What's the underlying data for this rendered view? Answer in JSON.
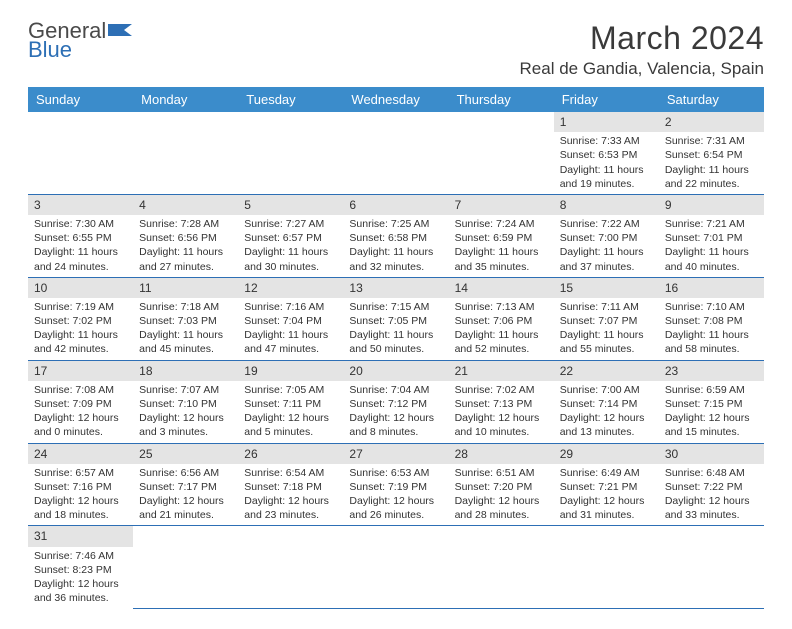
{
  "logo": {
    "word1": "General",
    "word2": "Blue"
  },
  "title": "March 2024",
  "location": "Real de Gandia, Valencia, Spain",
  "weekdays": [
    "Sunday",
    "Monday",
    "Tuesday",
    "Wednesday",
    "Thursday",
    "Friday",
    "Saturday"
  ],
  "colors": {
    "header_bg": "#3b8ccb",
    "header_fg": "#ffffff",
    "rule": "#2d6fb5",
    "daynum_bg": "#e4e4e4",
    "logo_blue": "#2d6fb5"
  },
  "grid": [
    [
      null,
      null,
      null,
      null,
      null,
      {
        "n": "1",
        "sr": "7:33 AM",
        "ss": "6:53 PM",
        "dl": "11 hours and 19 minutes."
      },
      {
        "n": "2",
        "sr": "7:31 AM",
        "ss": "6:54 PM",
        "dl": "11 hours and 22 minutes."
      }
    ],
    [
      {
        "n": "3",
        "sr": "7:30 AM",
        "ss": "6:55 PM",
        "dl": "11 hours and 24 minutes."
      },
      {
        "n": "4",
        "sr": "7:28 AM",
        "ss": "6:56 PM",
        "dl": "11 hours and 27 minutes."
      },
      {
        "n": "5",
        "sr": "7:27 AM",
        "ss": "6:57 PM",
        "dl": "11 hours and 30 minutes."
      },
      {
        "n": "6",
        "sr": "7:25 AM",
        "ss": "6:58 PM",
        "dl": "11 hours and 32 minutes."
      },
      {
        "n": "7",
        "sr": "7:24 AM",
        "ss": "6:59 PM",
        "dl": "11 hours and 35 minutes."
      },
      {
        "n": "8",
        "sr": "7:22 AM",
        "ss": "7:00 PM",
        "dl": "11 hours and 37 minutes."
      },
      {
        "n": "9",
        "sr": "7:21 AM",
        "ss": "7:01 PM",
        "dl": "11 hours and 40 minutes."
      }
    ],
    [
      {
        "n": "10",
        "sr": "7:19 AM",
        "ss": "7:02 PM",
        "dl": "11 hours and 42 minutes."
      },
      {
        "n": "11",
        "sr": "7:18 AM",
        "ss": "7:03 PM",
        "dl": "11 hours and 45 minutes."
      },
      {
        "n": "12",
        "sr": "7:16 AM",
        "ss": "7:04 PM",
        "dl": "11 hours and 47 minutes."
      },
      {
        "n": "13",
        "sr": "7:15 AM",
        "ss": "7:05 PM",
        "dl": "11 hours and 50 minutes."
      },
      {
        "n": "14",
        "sr": "7:13 AM",
        "ss": "7:06 PM",
        "dl": "11 hours and 52 minutes."
      },
      {
        "n": "15",
        "sr": "7:11 AM",
        "ss": "7:07 PM",
        "dl": "11 hours and 55 minutes."
      },
      {
        "n": "16",
        "sr": "7:10 AM",
        "ss": "7:08 PM",
        "dl": "11 hours and 58 minutes."
      }
    ],
    [
      {
        "n": "17",
        "sr": "7:08 AM",
        "ss": "7:09 PM",
        "dl": "12 hours and 0 minutes."
      },
      {
        "n": "18",
        "sr": "7:07 AM",
        "ss": "7:10 PM",
        "dl": "12 hours and 3 minutes."
      },
      {
        "n": "19",
        "sr": "7:05 AM",
        "ss": "7:11 PM",
        "dl": "12 hours and 5 minutes."
      },
      {
        "n": "20",
        "sr": "7:04 AM",
        "ss": "7:12 PM",
        "dl": "12 hours and 8 minutes."
      },
      {
        "n": "21",
        "sr": "7:02 AM",
        "ss": "7:13 PM",
        "dl": "12 hours and 10 minutes."
      },
      {
        "n": "22",
        "sr": "7:00 AM",
        "ss": "7:14 PM",
        "dl": "12 hours and 13 minutes."
      },
      {
        "n": "23",
        "sr": "6:59 AM",
        "ss": "7:15 PM",
        "dl": "12 hours and 15 minutes."
      }
    ],
    [
      {
        "n": "24",
        "sr": "6:57 AM",
        "ss": "7:16 PM",
        "dl": "12 hours and 18 minutes."
      },
      {
        "n": "25",
        "sr": "6:56 AM",
        "ss": "7:17 PM",
        "dl": "12 hours and 21 minutes."
      },
      {
        "n": "26",
        "sr": "6:54 AM",
        "ss": "7:18 PM",
        "dl": "12 hours and 23 minutes."
      },
      {
        "n": "27",
        "sr": "6:53 AM",
        "ss": "7:19 PM",
        "dl": "12 hours and 26 minutes."
      },
      {
        "n": "28",
        "sr": "6:51 AM",
        "ss": "7:20 PM",
        "dl": "12 hours and 28 minutes."
      },
      {
        "n": "29",
        "sr": "6:49 AM",
        "ss": "7:21 PM",
        "dl": "12 hours and 31 minutes."
      },
      {
        "n": "30",
        "sr": "6:48 AM",
        "ss": "7:22 PM",
        "dl": "12 hours and 33 minutes."
      }
    ],
    [
      {
        "n": "31",
        "sr": "7:46 AM",
        "ss": "8:23 PM",
        "dl": "12 hours and 36 minutes."
      },
      null,
      null,
      null,
      null,
      null,
      null
    ]
  ],
  "labels": {
    "sunrise": "Sunrise: ",
    "sunset": "Sunset: ",
    "daylight": "Daylight: "
  }
}
